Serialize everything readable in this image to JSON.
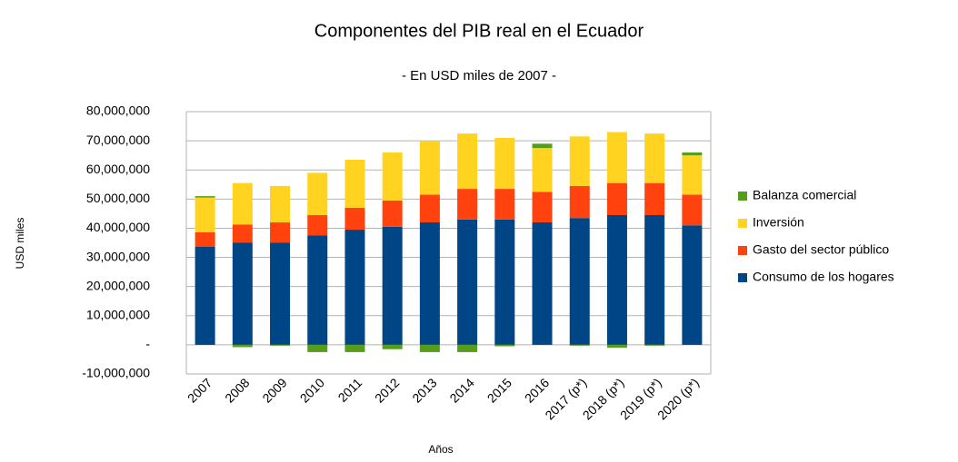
{
  "chart_data": {
    "type": "bar",
    "stacked": true,
    "title": "Componentes del PIB real en el Ecuador",
    "subtitle": "- En USD miles de 2007 -",
    "x_label": "Años",
    "y_label": "USD miles",
    "categories": [
      "2007",
      "2008",
      "2009",
      "2010",
      "2011",
      "2012",
      "2013",
      "2014",
      "2015",
      "2016",
      "2017 (p*)",
      "2018 (p*)",
      "2019 (p*)",
      "2020 (p*)"
    ],
    "series": [
      {
        "name": "Consumo de los hogares",
        "color": "#004586",
        "values": [
          33600000,
          35000000,
          35000000,
          37500000,
          39500000,
          40500000,
          42000000,
          43000000,
          43000000,
          42000000,
          43500000,
          44500000,
          44500000,
          41000000
        ]
      },
      {
        "name": "Gasto del sector público",
        "color": "#ff420e",
        "values": [
          5000000,
          6300000,
          7000000,
          7000000,
          7500000,
          9000000,
          9500000,
          10500000,
          10500000,
          10500000,
          11000000,
          11000000,
          11000000,
          10500000
        ]
      },
      {
        "name": "Inversión",
        "color": "#ffd320",
        "values": [
          11900000,
          14200000,
          12500000,
          14500000,
          16500000,
          16500000,
          18500000,
          19000000,
          17500000,
          15000000,
          17000000,
          17500000,
          17000000,
          13500000
        ]
      },
      {
        "name": "Balanza comercial",
        "color": "#579d1c",
        "values": [
          500000,
          -800000,
          -300000,
          -2500000,
          -2500000,
          -1500000,
          -2500000,
          -2500000,
          -500000,
          1500000,
          -300000,
          -1000000,
          -300000,
          1000000
        ]
      }
    ],
    "ylim": [
      -10000000,
      80000000
    ],
    "yticks": [
      {
        "value": -10000000,
        "label": "-10,000,000"
      },
      {
        "value": 0,
        "label": "-"
      },
      {
        "value": 10000000,
        "label": "10,000,000"
      },
      {
        "value": 20000000,
        "label": "20,000,000"
      },
      {
        "value": 30000000,
        "label": "30,000,000"
      },
      {
        "value": 40000000,
        "label": "40,000,000"
      },
      {
        "value": 50000000,
        "label": "50,000,000"
      },
      {
        "value": 60000000,
        "label": "60,000,000"
      },
      {
        "value": 70000000,
        "label": "70,000,000"
      },
      {
        "value": 80000000,
        "label": "80,000,000"
      }
    ],
    "grid": true,
    "legend": "right"
  }
}
